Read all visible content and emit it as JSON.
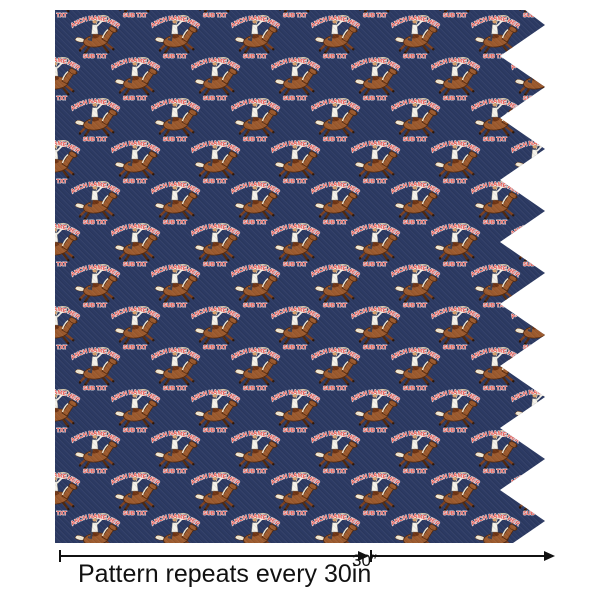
{
  "pattern": {
    "arc_text": "RANCH NAME HERE",
    "sub_text": "SUB TXT",
    "motif_name": "cowboy-on-galloping-horse-with-lasso",
    "colors": {
      "background_navy": "#2c3a63",
      "text_red": "#e8524a",
      "text_outline": "#ffffff",
      "horse_brown": "#9c5a2e",
      "horse_dark": "#52290f",
      "mane_cream": "#f2ead6",
      "rider_shirt": "#f5f2ea",
      "rider_skin": "#d9a06b",
      "rider_pants": "#3a3f55",
      "rope_tan": "#ddcfae"
    }
  },
  "annotation": {
    "repeat_label": "Pattern repeats every 30in",
    "segment_label": "30″",
    "line_color": "#111111"
  }
}
